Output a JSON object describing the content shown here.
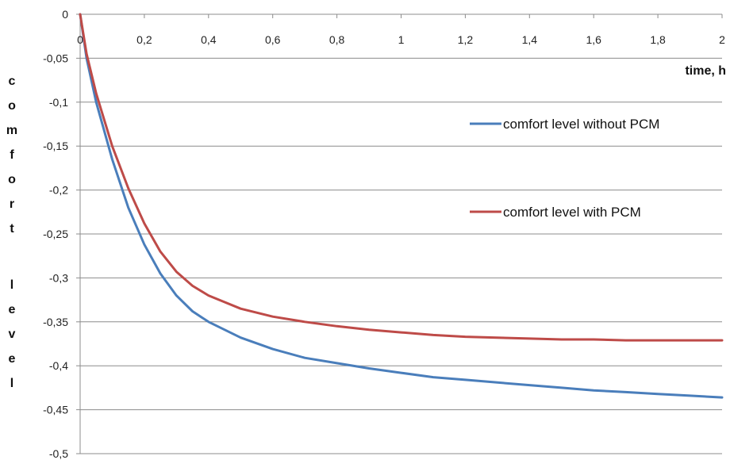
{
  "chart_data": {
    "type": "line",
    "xlabel": "time, h",
    "ylabel": "comfort level",
    "xlim": [
      0,
      2
    ],
    "ylim": [
      -0.5,
      0
    ],
    "grid": "horizontal",
    "legend_position": "right",
    "x_ticks": [
      "0",
      "0,2",
      "0,4",
      "0,6",
      "0,8",
      "1",
      "1,2",
      "1,4",
      "1,6",
      "1,8",
      "2"
    ],
    "y_ticks": [
      "0",
      "-0,05",
      "-0,1",
      "-0,15",
      "-0,2",
      "-0,25",
      "-0,3",
      "-0,35",
      "-0,4",
      "-0,45",
      "-0,5"
    ],
    "x_tick_values": [
      0,
      0.2,
      0.4,
      0.6,
      0.8,
      1,
      1.2,
      1.4,
      1.6,
      1.8,
      2
    ],
    "y_tick_values": [
      0,
      -0.05,
      -0.1,
      -0.15,
      -0.2,
      -0.25,
      -0.3,
      -0.35,
      -0.4,
      -0.45,
      -0.5
    ],
    "x": [
      0,
      0.02,
      0.05,
      0.1,
      0.15,
      0.2,
      0.25,
      0.3,
      0.35,
      0.4,
      0.5,
      0.6,
      0.7,
      0.8,
      0.9,
      1,
      1.1,
      1.2,
      1.3,
      1.4,
      1.5,
      1.6,
      1.7,
      1.8,
      1.9,
      2
    ],
    "series": [
      {
        "name": "comfort level without PCM",
        "color": "#4a7ebb",
        "values": [
          0,
          -0.05,
          -0.1,
          -0.165,
          -0.22,
          -0.262,
          -0.295,
          -0.32,
          -0.338,
          -0.35,
          -0.368,
          -0.381,
          -0.391,
          -0.397,
          -0.403,
          -0.408,
          -0.413,
          -0.416,
          -0.419,
          -0.422,
          -0.425,
          -0.428,
          -0.43,
          -0.432,
          -0.434,
          -0.436
        ]
      },
      {
        "name": "comfort level with PCM",
        "color": "#be4b48",
        "values": [
          0,
          -0.045,
          -0.09,
          -0.15,
          -0.198,
          -0.238,
          -0.27,
          -0.293,
          -0.309,
          -0.32,
          -0.335,
          -0.344,
          -0.35,
          -0.355,
          -0.359,
          -0.362,
          -0.365,
          -0.367,
          -0.368,
          -0.369,
          -0.37,
          -0.37,
          -0.371,
          -0.371,
          -0.371,
          -0.371
        ]
      }
    ]
  }
}
